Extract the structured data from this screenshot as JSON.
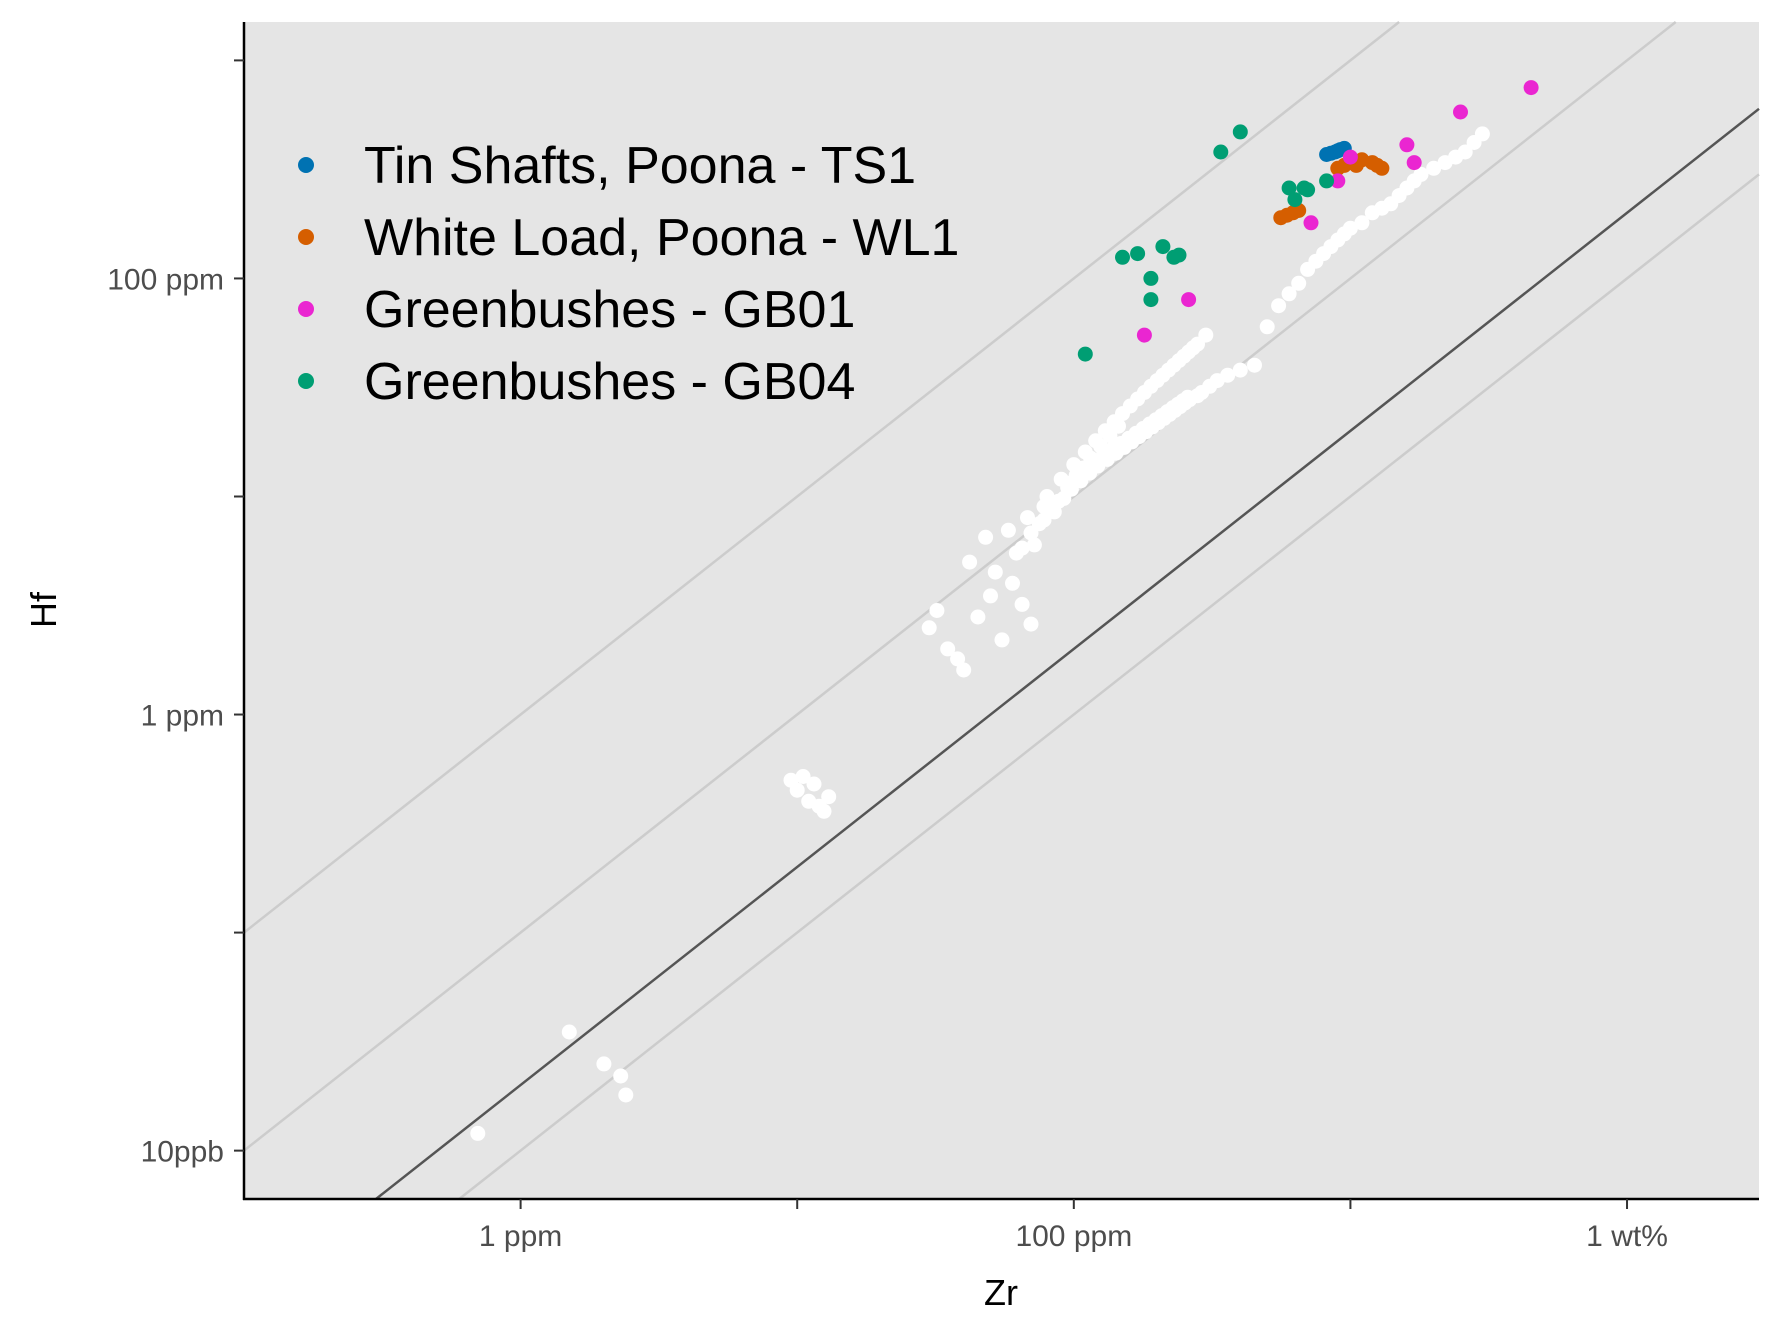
{
  "chart_data": {
    "type": "scatter",
    "xlabel": "Zr",
    "ylabel": "Hf",
    "x_scale": "log10",
    "y_scale": "log10",
    "x_unit": "ppm",
    "y_unit": "ppm",
    "xlim": [
      0.1,
      30000
    ],
    "ylim": [
      0.006,
      1500
    ],
    "grid": false,
    "panel_background": "#e5e5e5",
    "legend_position": "top-left",
    "x_ticks": [
      {
        "value": 1,
        "label": "1 ppm"
      },
      {
        "value": 100,
        "label": "100 ppm"
      },
      {
        "value": 10000,
        "label": "1 wt%"
      }
    ],
    "x_minor_ticks": [
      10,
      1000
    ],
    "y_ticks": [
      {
        "value": 0.01,
        "label": "10ppb"
      },
      {
        "value": 1,
        "label": "1 ppm"
      },
      {
        "value": 100,
        "label": "100 ppm"
      }
    ],
    "y_minor_ticks": [
      0.1,
      10,
      1000
    ],
    "reference_lines": [
      {
        "ratio": 1,
        "color": "#cccccc"
      },
      {
        "ratio": 0.1,
        "color": "#cccccc"
      },
      {
        "ratio": 0.02,
        "color": "#555555"
      },
      {
        "ratio": 0.01,
        "color": "#cccccc"
      }
    ],
    "background_points": {
      "color": "#ffffff",
      "x": [
        0.7,
        1.5,
        2.0,
        2.3,
        2.4,
        9.5,
        10,
        11,
        12,
        12.5,
        13,
        11.5,
        10.5,
        30,
        32,
        35,
        38,
        40,
        45,
        50,
        55,
        60,
        65,
        70,
        42,
        48,
        52,
        58,
        62,
        68,
        72,
        78,
        80,
        85,
        90,
        95,
        100,
        105,
        110,
        115,
        120,
        125,
        130,
        135,
        140,
        145,
        150,
        160,
        170,
        180,
        190,
        200,
        210,
        220,
        230,
        240,
        250,
        260,
        270,
        280,
        300,
        75,
        88,
        96,
        102,
        108,
        118,
        128,
        138,
        148,
        158,
        168,
        178,
        188,
        198,
        208,
        218,
        228,
        238,
        248,
        258,
        65,
        70,
        78,
        84,
        92,
        98,
        106,
        114,
        122,
        132,
        142,
        152,
        162,
        172,
        182,
        192,
        202,
        212,
        222,
        232,
        242,
        252,
        262,
        280,
        290,
        310,
        330,
        360,
        400,
        450,
        500,
        550,
        600,
        650,
        700,
        750,
        800,
        850,
        900,
        950,
        1000,
        1100,
        1200,
        1300,
        1400,
        1500,
        1600,
        1700,
        1800,
        2000,
        2200,
        2400,
        2600,
        2800,
        3000
      ],
      "y": [
        0.012,
        0.035,
        0.025,
        0.022,
        0.018,
        0.5,
        0.45,
        0.4,
        0.38,
        0.36,
        0.42,
        0.48,
        0.52,
        2.5,
        3.0,
        2.0,
        1.8,
        1.6,
        2.8,
        3.5,
        2.2,
        4.0,
        3.2,
        2.6,
        5.0,
        6.5,
        4.5,
        7.0,
        5.5,
        8.0,
        6.0,
        9.0,
        10,
        8.5,
        12,
        11,
        14,
        13,
        16,
        15,
        18,
        17,
        20,
        19,
        22,
        21,
        24,
        26,
        28,
        30,
        32,
        34,
        36,
        38,
        40,
        42,
        44,
        46,
        48,
        50,
        55,
        7.5,
        9.5,
        11.5,
        12.5,
        13.5,
        14.5,
        15.5,
        16.5,
        17.5,
        18.5,
        19.5,
        20.5,
        21.5,
        22.5,
        23.5,
        24.5,
        25.5,
        26.5,
        27.5,
        28.5,
        5.8,
        6.8,
        7.8,
        8.8,
        9.8,
        10.8,
        11.8,
        12.8,
        13.8,
        14.8,
        15.8,
        16.8,
        17.8,
        18.8,
        19.8,
        20.8,
        21.8,
        22.8,
        23.8,
        24.8,
        25.8,
        26.8,
        27.8,
        29,
        30,
        32,
        34,
        36,
        38,
        40,
        60,
        75,
        85,
        95,
        110,
        120,
        130,
        140,
        150,
        160,
        170,
        180,
        200,
        210,
        220,
        240,
        260,
        280,
        300,
        320,
        340,
        360,
        380,
        420,
        460
      ]
    },
    "series": [
      {
        "name": "Tin Shafts, Poona - TS1",
        "color": "#0072b2",
        "x": [
          820,
          850,
          880,
          900,
          920,
          950
        ],
        "y": [
          370,
          375,
          380,
          385,
          390,
          395
        ]
      },
      {
        "name": "White Load, Poona - WL1",
        "color": "#d55e00",
        "x": [
          560,
          590,
          620,
          650,
          900,
          950,
          1000,
          1050,
          1100,
          1200,
          1250,
          1300
        ],
        "y": [
          190,
          195,
          200,
          205,
          320,
          330,
          340,
          330,
          350,
          340,
          330,
          320
        ]
      },
      {
        "name": "Greenbushes - GB01",
        "color": "#ea26d1",
        "x": [
          180,
          260,
          720,
          900,
          1000,
          1600,
          1700,
          2500,
          4500
        ],
        "y": [
          55,
          80,
          180,
          280,
          360,
          410,
          340,
          580,
          750
        ]
      },
      {
        "name": "Greenbushes - GB04",
        "color": "#009e73",
        "x": [
          110,
          150,
          170,
          190,
          190,
          210,
          230,
          240,
          340,
          400,
          600,
          630,
          680,
          700,
          820
        ],
        "y": [
          45,
          125,
          130,
          100,
          80,
          140,
          125,
          128,
          380,
          470,
          260,
          230,
          260,
          255,
          280
        ]
      }
    ]
  }
}
